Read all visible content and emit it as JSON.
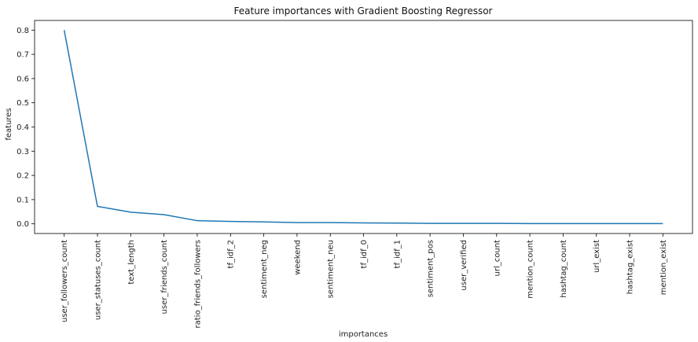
{
  "chart_data": {
    "type": "line",
    "title": "Feature importances with Gradient Boosting Regressor",
    "xlabel": "importances",
    "ylabel": "features",
    "categories": [
      "user_followers_count",
      "user_statuses_count",
      "text_length",
      "user_friends_count",
      "ratio_friends_followers",
      "tf_idf_2",
      "sentiment_neg",
      "weekend",
      "sentiment_neu",
      "tf_idf_0",
      "tf_idf_1",
      "sentiment_pos",
      "user_verified",
      "url_count",
      "mention_count",
      "hashtag_count",
      "url_exist",
      "hashtag_exist",
      "mention_exist"
    ],
    "series": [
      {
        "values": [
          0.8,
          0.072,
          0.048,
          0.038,
          0.013,
          0.01,
          0.008,
          0.005,
          0.005,
          0.004,
          0.003,
          0.002,
          0.002,
          0.002,
          0.001,
          0.001,
          0.001,
          0.001,
          0.001
        ],
        "color": "#1f77b4"
      }
    ],
    "yticks": [
      "0.0",
      "0.1",
      "0.2",
      "0.3",
      "0.4",
      "0.5",
      "0.6",
      "0.7",
      "0.8"
    ],
    "ylim": [
      -0.04,
      0.84
    ],
    "grid": false,
    "legend": "none"
  }
}
